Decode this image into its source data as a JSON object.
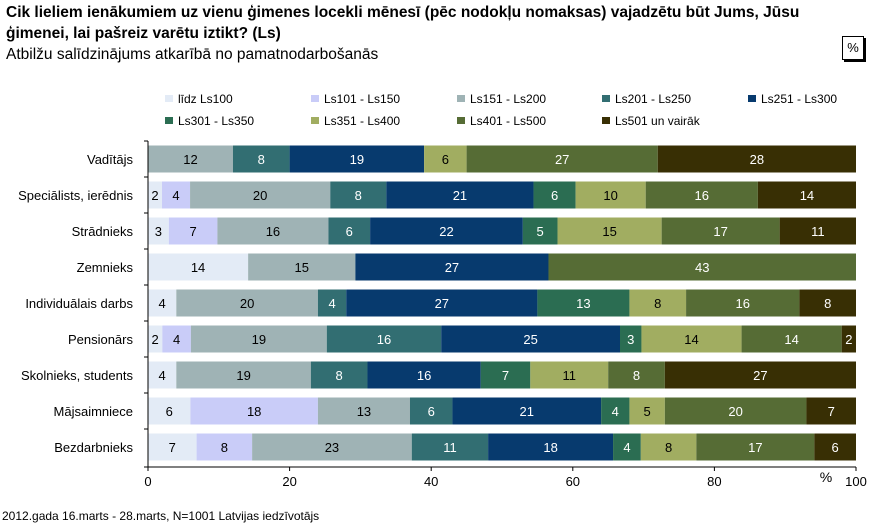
{
  "title": "Cik lieliem ienākumiem uz vienu ģimenes locekli mēnesī (pēc nodokļu nomaksas) vajadzētu būt Jums, Jūsu ģimenei, lai pašreiz varētu iztikt? (Ls)",
  "subtitle": "Atbilžu salīdzinājums atkarībā no pamatnodarbošanās",
  "unit_box": "%",
  "footer": "2012.gada 16.marts - 28.marts, N=1001 Latvijas iedzīvotājs",
  "colors": [
    "#e3ebf6",
    "#c9ccf8",
    "#9fb3b5",
    "#326e72",
    "#073a6e",
    "#2b6d52",
    "#a1ad61",
    "#566c35",
    "#382f04"
  ],
  "chart_data": {
    "type": "bar",
    "orientation": "horizontal",
    "stacked": true,
    "categories": [
      "Vadītājs",
      "Speciālists, ierēdnis",
      "Strādnieks",
      "Zemnieks",
      "Individuālais darbs",
      "Pensionārs",
      "Skolnieks, students",
      "Mājsaimniece",
      "Bezdarbnieks"
    ],
    "series": [
      {
        "name": "līdz Ls100",
        "values": [
          0,
          2,
          3,
          14,
          4,
          2,
          4,
          6,
          7
        ]
      },
      {
        "name": "Ls101 - Ls150",
        "values": [
          0,
          4,
          7,
          0,
          0,
          4,
          0,
          18,
          8
        ]
      },
      {
        "name": "Ls151 - Ls200",
        "values": [
          12,
          20,
          16,
          15,
          20,
          19,
          19,
          13,
          23
        ]
      },
      {
        "name": "Ls201 - Ls250",
        "values": [
          8,
          8,
          6,
          0,
          4,
          16,
          8,
          6,
          11
        ]
      },
      {
        "name": "Ls251 - Ls300",
        "values": [
          19,
          21,
          22,
          27,
          27,
          25,
          16,
          21,
          18
        ]
      },
      {
        "name": "Ls301 - Ls350",
        "values": [
          0,
          6,
          5,
          0,
          13,
          3,
          7,
          4,
          4
        ]
      },
      {
        "name": "Ls351 - Ls400",
        "values": [
          6,
          10,
          15,
          0,
          8,
          14,
          11,
          5,
          8
        ]
      },
      {
        "name": "Ls401 - Ls500",
        "values": [
          27,
          16,
          17,
          43,
          16,
          14,
          8,
          20,
          17
        ]
      },
      {
        "name": "Ls501 un vairāk",
        "values": [
          28,
          14,
          11,
          0,
          8,
          2,
          27,
          7,
          6
        ]
      }
    ],
    "xlim": [
      0,
      100
    ],
    "xticks": [
      0,
      20,
      40,
      60,
      80,
      100
    ],
    "xlabel": "%",
    "legend_position": "top",
    "grid": false
  }
}
